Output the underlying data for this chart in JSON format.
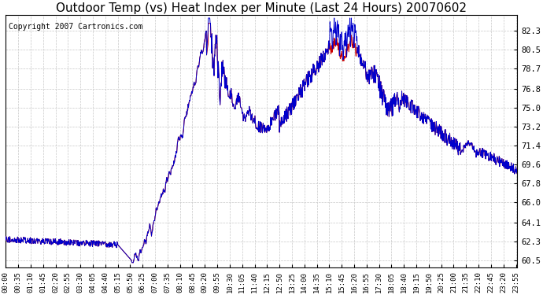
{
  "title": "Outdoor Temp (vs) Heat Index per Minute (Last 24 Hours) 20070602",
  "copyright_text": "Copyright 2007 Cartronics.com",
  "bg_color": "#ffffff",
  "plot_bg_color": "#ffffff",
  "grid_color": "#c8c8c8",
  "line_color_temp": "#cc0000",
  "line_color_heat": "#0000cc",
  "yticks": [
    60.5,
    62.3,
    64.1,
    66.0,
    67.8,
    69.6,
    71.4,
    73.2,
    75.0,
    76.8,
    78.7,
    80.5,
    82.3
  ],
  "ylim": [
    59.8,
    83.8
  ],
  "xlabel_fontsize": 6.5,
  "title_fontsize": 11,
  "copyright_fontsize": 7
}
